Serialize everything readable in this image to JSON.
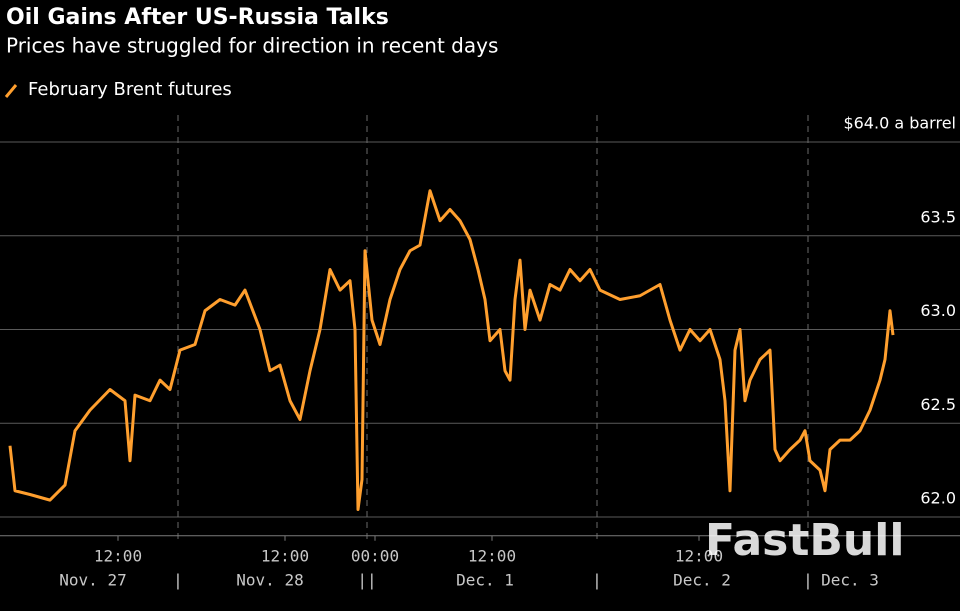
{
  "chart_data": {
    "type": "line",
    "title": "Oil Gains After US-Russia Talks",
    "subtitle": "Prices have struggled for direction in recent days",
    "watermark": "FastBull",
    "series": [
      {
        "name": "February Brent futures",
        "color": "#ff9f2e",
        "x": [
          2,
          3,
          6,
          10,
          13,
          15,
          18,
          22,
          25,
          26,
          27,
          30,
          32,
          34,
          36,
          39,
          41,
          44,
          47,
          49,
          52,
          54,
          56,
          58,
          60,
          62,
          64,
          66,
          68,
          70,
          71,
          71.6,
          72.4,
          73,
          74.4,
          76,
          78,
          80,
          82,
          84,
          86,
          88,
          90,
          92,
          94,
          95.6,
          97,
          98,
          100,
          101,
          102,
          103,
          104,
          105,
          106,
          108,
          110,
          112,
          114,
          116,
          118,
          120,
          124,
          128,
          132,
          134,
          136,
          138,
          140,
          142,
          144,
          145,
          146,
          147,
          148,
          149,
          150,
          152,
          154,
          155,
          156,
          158,
          160,
          161,
          162,
          164,
          165,
          166,
          168,
          170,
          172,
          174,
          176,
          177,
          178,
          178.6
        ],
        "values": [
          62.38,
          62.14,
          62.12,
          62.09,
          62.17,
          62.46,
          62.57,
          62.68,
          62.62,
          62.3,
          62.65,
          62.62,
          62.73,
          62.68,
          62.89,
          62.92,
          63.1,
          63.16,
          63.13,
          63.21,
          63.0,
          62.78,
          62.81,
          62.62,
          62.52,
          62.78,
          63.0,
          63.32,
          63.21,
          63.26,
          63.0,
          62.04,
          62.2,
          63.42,
          63.05,
          62.92,
          63.16,
          63.32,
          63.42,
          63.45,
          63.74,
          63.58,
          63.64,
          63.58,
          63.48,
          63.32,
          63.16,
          62.94,
          63.0,
          62.78,
          62.73,
          63.16,
          63.37,
          63.0,
          63.21,
          63.05,
          63.24,
          63.21,
          63.32,
          63.26,
          63.32,
          63.21,
          63.16,
          63.18,
          63.24,
          63.05,
          62.89,
          63.0,
          62.94,
          63.0,
          62.84,
          62.62,
          62.14,
          62.89,
          63.0,
          62.62,
          62.73,
          62.84,
          62.89,
          62.36,
          62.3,
          62.36,
          62.41,
          62.46,
          62.3,
          62.25,
          62.14,
          62.36,
          62.41,
          62.41,
          62.46,
          62.57,
          62.73,
          62.84,
          63.1,
          62.97
        ]
      }
    ],
    "xlim": [
      0,
      192
    ],
    "ylim": [
      61.9,
      64.1
    ],
    "yticks": [
      {
        "value": 62,
        "label": "62.0"
      },
      {
        "value": 62.5,
        "label": "62.5"
      },
      {
        "value": 63,
        "label": "63.0"
      },
      {
        "value": 63.5,
        "label": "63.5"
      },
      {
        "value": 64,
        "label": "$64.0 a barrel"
      }
    ],
    "xticks": [
      {
        "value": 23.6,
        "label": "12:00"
      },
      {
        "value": 57,
        "label": "12:00"
      },
      {
        "value": 75,
        "label": "00:00"
      },
      {
        "value": 98.4,
        "label": "12:00"
      },
      {
        "value": 139.8,
        "label": "12:00"
      }
    ],
    "day_labels": [
      {
        "value": 18.6,
        "label": "Nov. 27"
      },
      {
        "value": 54,
        "label": "Nov. 28"
      },
      {
        "value": 97,
        "label": "Dec. 1"
      },
      {
        "value": 140.4,
        "label": "Dec. 2"
      },
      {
        "value": 170,
        "label": "Dec. 3"
      }
    ],
    "separators": [
      {
        "value": 35.6,
        "label": "|"
      },
      {
        "value": 73.4,
        "label": "||"
      },
      {
        "value": 119.4,
        "label": "|"
      },
      {
        "value": 161.6,
        "label": "|"
      }
    ],
    "grid": true
  }
}
